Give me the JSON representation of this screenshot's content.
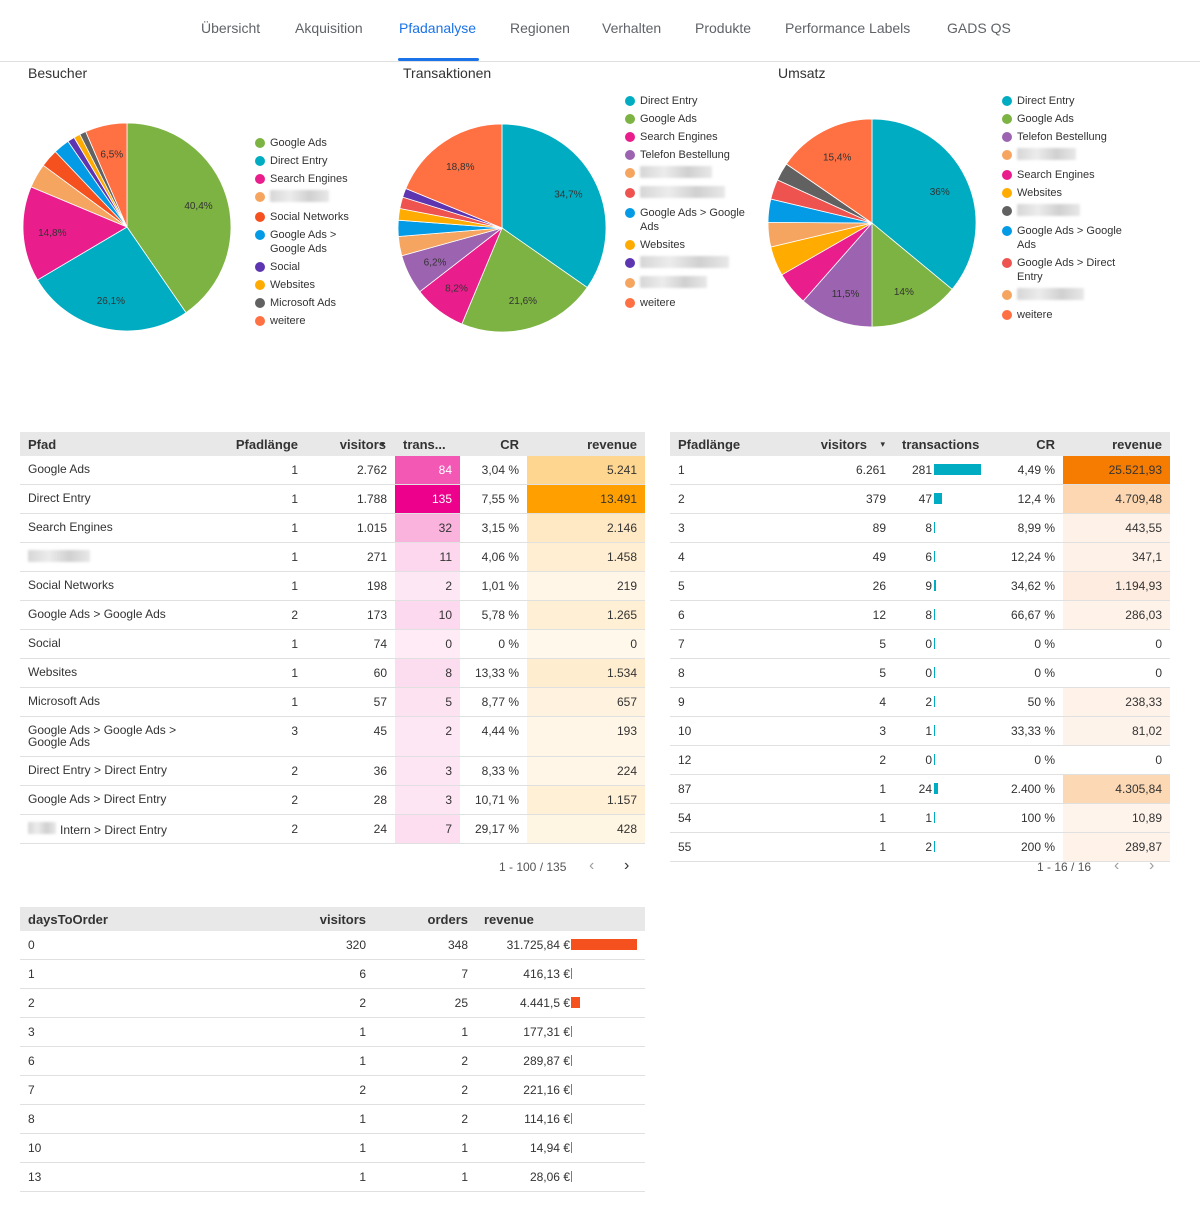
{
  "nav": {
    "tabs": [
      "Übersicht",
      "Akquisition",
      "Pfadanalyse",
      "Regionen",
      "Verhalten",
      "Produkte",
      "Performance Labels",
      "GADS QS"
    ],
    "active": "Pfadanalyse"
  },
  "colors": {
    "accent": "#1a73e8",
    "google_ads": "#7cb342",
    "direct_entry": "#00acc1",
    "search_engines": "#e91e8c",
    "social_networks": "#f4511e",
    "google_ads_google_ads": "#039be5",
    "social": "#5e35b1",
    "websites": "#ffab00",
    "microsoft_ads": "#616161",
    "weitere": "#ff7043",
    "telefon": "#9c64b0",
    "heat_pink": "#ec008c",
    "heat_orange": "#ffa000",
    "bar_teal": "#00acc1",
    "bar_orange": "#f4511e"
  },
  "charts": {
    "besucher": {
      "title": "Besucher",
      "slices": [
        {
          "label": "Google Ads",
          "pct": 40.4,
          "label_text": "40,4%",
          "color": "#7cb342"
        },
        {
          "label": "Direct Entry",
          "pct": 26.1,
          "label_text": "26,1%",
          "color": "#00acc1"
        },
        {
          "label": "Search Engines",
          "pct": 14.8,
          "label_text": "14,8%",
          "color": "#e91e8c"
        },
        {
          "label": "",
          "pct": 3.8,
          "label_text": "",
          "color": "#f6a561"
        },
        {
          "label": "Social Networks",
          "pct": 2.8,
          "label_text": "",
          "color": "#f4511e"
        },
        {
          "label": "Google Ads > Google Ads",
          "pct": 2.5,
          "label_text": "",
          "color": "#039be5"
        },
        {
          "label": "Social",
          "pct": 1.1,
          "label_text": "",
          "color": "#5e35b1"
        },
        {
          "label": "Websites",
          "pct": 1.0,
          "label_text": "",
          "color": "#ffab00"
        },
        {
          "label": "Microsoft Ads",
          "pct": 1.0,
          "label_text": "",
          "color": "#616161"
        },
        {
          "label": "weitere",
          "pct": 6.5,
          "label_text": "6,5%",
          "color": "#ff7043"
        }
      ],
      "legend": [
        "Google Ads",
        "Direct Entry",
        "Search Engines",
        "",
        "Social Networks",
        "Google Ads > Google Ads",
        "Social",
        "Websites",
        "Microsoft Ads",
        "weitere"
      ]
    },
    "transaktionen": {
      "title": "Transaktionen",
      "slices": [
        {
          "label": "Direct Entry",
          "pct": 34.7,
          "label_text": "34,7%",
          "color": "#00acc1"
        },
        {
          "label": "Google Ads",
          "pct": 21.6,
          "label_text": "21,6%",
          "color": "#7cb342"
        },
        {
          "label": "Search Engines",
          "pct": 8.2,
          "label_text": "8,2%",
          "color": "#e91e8c"
        },
        {
          "label": "Telefon Bestellung",
          "pct": 6.2,
          "label_text": "6,2%",
          "color": "#9c64b0"
        },
        {
          "label": "",
          "pct": 3.0,
          "label_text": "",
          "color": "#f6a561"
        },
        {
          "label": "Google Ads > Google Ads",
          "pct": 2.5,
          "label_text": "",
          "color": "#039be5"
        },
        {
          "label": "Websites",
          "pct": 1.8,
          "label_text": "",
          "color": "#ffab00"
        },
        {
          "label": "",
          "pct": 1.8,
          "label_text": "",
          "color": "#ef5350"
        },
        {
          "label": "",
          "pct": 1.4,
          "label_text": "",
          "color": "#5e35b1"
        },
        {
          "label": "weitere",
          "pct": 18.8,
          "label_text": "18,8%",
          "color": "#ff7043"
        }
      ],
      "legend": [
        "Direct Entry",
        "Google Ads",
        "Search Engines",
        "Telefon Bestellung",
        "",
        "",
        "Google Ads > Google Ads",
        "Websites",
        "",
        "",
        "weitere"
      ]
    },
    "umsatz": {
      "title": "Umsatz",
      "slices": [
        {
          "label": "Direct Entry",
          "pct": 36.0,
          "label_text": "36%",
          "color": "#00acc1"
        },
        {
          "label": "Google Ads",
          "pct": 14.0,
          "label_text": "14%",
          "color": "#7cb342"
        },
        {
          "label": "Telefon Bestellung",
          "pct": 11.5,
          "label_text": "11,5%",
          "color": "#9c64b0"
        },
        {
          "label": "Search Engines",
          "pct": 5.2,
          "label_text": "",
          "color": "#e91e8c"
        },
        {
          "label": "Websites",
          "pct": 4.6,
          "label_text": "",
          "color": "#ffab00"
        },
        {
          "label": "",
          "pct": 3.8,
          "label_text": "",
          "color": "#f6a561"
        },
        {
          "label": "Google Ads > Google Ads",
          "pct": 3.6,
          "label_text": "",
          "color": "#039be5"
        },
        {
          "label": "Google Ads > Direct Entry",
          "pct": 3.1,
          "label_text": "",
          "color": "#ef5350"
        },
        {
          "label": "",
          "pct": 2.8,
          "label_text": "",
          "color": "#616161"
        },
        {
          "label": "weitere",
          "pct": 15.4,
          "label_text": "15,4%",
          "color": "#ff7043"
        }
      ],
      "legend": [
        "Direct Entry",
        "Google Ads",
        "Telefon Bestellung",
        "",
        "Search Engines",
        "Websites",
        "",
        "Google Ads > Google Ads",
        "Google Ads > Direct Entry",
        "",
        "weitere"
      ]
    }
  },
  "path_table": {
    "headers": {
      "pfad": "Pfad",
      "pfadlaenge": "Pfadlänge",
      "visitors": "visitors",
      "sort_icon": "▾",
      "trans": "trans...",
      "cr": "CR",
      "revenue": "revenue"
    },
    "rows": [
      {
        "pfad": "Google Ads",
        "len": "1",
        "visitors": "2.762",
        "trans": "84",
        "cr": "3,04 %",
        "revenue": "5.241",
        "t": 84,
        "r": 5241
      },
      {
        "pfad": "Direct Entry",
        "len": "1",
        "visitors": "1.788",
        "trans": "135",
        "cr": "7,55 %",
        "revenue": "13.491",
        "t": 135,
        "r": 13491
      },
      {
        "pfad": "Search Engines",
        "len": "1",
        "visitors": "1.015",
        "trans": "32",
        "cr": "3,15 %",
        "revenue": "2.146",
        "t": 32,
        "r": 2146
      },
      {
        "pfad": "",
        "len": "1",
        "visitors": "271",
        "trans": "11",
        "cr": "4,06 %",
        "revenue": "1.458",
        "t": 11,
        "r": 1458
      },
      {
        "pfad": "Social Networks",
        "len": "1",
        "visitors": "198",
        "trans": "2",
        "cr": "1,01 %",
        "revenue": "219",
        "t": 2,
        "r": 219
      },
      {
        "pfad": "Google Ads > Google Ads",
        "len": "2",
        "visitors": "173",
        "trans": "10",
        "cr": "5,78 %",
        "revenue": "1.265",
        "t": 10,
        "r": 1265
      },
      {
        "pfad": "Social",
        "len": "1",
        "visitors": "74",
        "trans": "0",
        "cr": "0 %",
        "revenue": "0",
        "t": 0,
        "r": 0
      },
      {
        "pfad": "Websites",
        "len": "1",
        "visitors": "60",
        "trans": "8",
        "cr": "13,33 %",
        "revenue": "1.534",
        "t": 8,
        "r": 1534
      },
      {
        "pfad": "Microsoft Ads",
        "len": "1",
        "visitors": "57",
        "trans": "5",
        "cr": "8,77 %",
        "revenue": "657",
        "t": 5,
        "r": 657
      },
      {
        "pfad": "Google Ads > Google Ads > Google Ads",
        "len": "3",
        "visitors": "45",
        "trans": "2",
        "cr": "4,44 %",
        "revenue": "193",
        "t": 2,
        "r": 193
      },
      {
        "pfad": "Direct Entry > Direct Entry",
        "len": "2",
        "visitors": "36",
        "trans": "3",
        "cr": "8,33 %",
        "revenue": "224",
        "t": 3,
        "r": 224
      },
      {
        "pfad": "Google Ads > Direct Entry",
        "len": "2",
        "visitors": "28",
        "trans": "3",
        "cr": "10,71 %",
        "revenue": "1.157",
        "t": 3,
        "r": 1157
      },
      {
        "pfad": "Intern > Direct Entry",
        "len": "2",
        "visitors": "24",
        "trans": "7",
        "cr": "29,17 %",
        "revenue": "428",
        "t": 7,
        "r": 428
      }
    ],
    "pager": "1 - 100 / 135",
    "prev": "‹",
    "next": "›"
  },
  "length_table": {
    "headers": {
      "pfadlaenge": "Pfadlänge",
      "visitors": "visitors",
      "sort_icon": "▾",
      "transactions": "transactions",
      "cr": "CR",
      "revenue": "revenue"
    },
    "rows": [
      {
        "len": "1",
        "visitors": "6.261",
        "trans": "281",
        "cr": "4,49 %",
        "revenue": "25.521,93",
        "t": 281,
        "r": 25521.93
      },
      {
        "len": "2",
        "visitors": "379",
        "trans": "47",
        "cr": "12,4 %",
        "revenue": "4.709,48",
        "t": 47,
        "r": 4709.48
      },
      {
        "len": "3",
        "visitors": "89",
        "trans": "8",
        "cr": "8,99 %",
        "revenue": "443,55",
        "t": 8,
        "r": 443.55
      },
      {
        "len": "4",
        "visitors": "49",
        "trans": "6",
        "cr": "12,24 %",
        "revenue": "347,1",
        "t": 6,
        "r": 347.1
      },
      {
        "len": "5",
        "visitors": "26",
        "trans": "9",
        "cr": "34,62 %",
        "revenue": "1.194,93",
        "t": 9,
        "r": 1194.93
      },
      {
        "len": "6",
        "visitors": "12",
        "trans": "8",
        "cr": "66,67 %",
        "revenue": "286,03",
        "t": 8,
        "r": 286.03
      },
      {
        "len": "7",
        "visitors": "5",
        "trans": "0",
        "cr": "0 %",
        "revenue": "0",
        "t": 0,
        "r": 0
      },
      {
        "len": "8",
        "visitors": "5",
        "trans": "0",
        "cr": "0 %",
        "revenue": "0",
        "t": 0,
        "r": 0
      },
      {
        "len": "9",
        "visitors": "4",
        "trans": "2",
        "cr": "50 %",
        "revenue": "238,33",
        "t": 2,
        "r": 238.33
      },
      {
        "len": "10",
        "visitors": "3",
        "trans": "1",
        "cr": "33,33 %",
        "revenue": "81,02",
        "t": 1,
        "r": 81.02
      },
      {
        "len": "12",
        "visitors": "2",
        "trans": "0",
        "cr": "0 %",
        "revenue": "0",
        "t": 0,
        "r": 0
      },
      {
        "len": "87",
        "visitors": "1",
        "trans": "24",
        "cr": "2.400 %",
        "revenue": "4.305,84",
        "t": 24,
        "r": 4305.84
      },
      {
        "len": "54",
        "visitors": "1",
        "trans": "1",
        "cr": "100 %",
        "revenue": "10,89",
        "t": 1,
        "r": 10.89
      },
      {
        "len": "55",
        "visitors": "1",
        "trans": "2",
        "cr": "200 %",
        "revenue": "289,87",
        "t": 2,
        "r": 289.87
      }
    ],
    "pager": "1 - 16 / 16",
    "prev": "‹",
    "next": "›"
  },
  "days_table": {
    "headers": {
      "days": "daysToOrder",
      "visitors": "visitors",
      "orders": "orders",
      "revenue": "revenue"
    },
    "rows": [
      {
        "days": "0",
        "visitors": "320",
        "orders": "348",
        "revenue": "31.725,84 €",
        "r": 31725.84
      },
      {
        "days": "1",
        "visitors": "6",
        "orders": "7",
        "revenue": "416,13 €",
        "r": 416.13
      },
      {
        "days": "2",
        "visitors": "2",
        "orders": "25",
        "revenue": "4.441,5 €",
        "r": 4441.5
      },
      {
        "days": "3",
        "visitors": "1",
        "orders": "1",
        "revenue": "177,31 €",
        "r": 177.31
      },
      {
        "days": "6",
        "visitors": "1",
        "orders": "2",
        "revenue": "289,87 €",
        "r": 289.87
      },
      {
        "days": "7",
        "visitors": "2",
        "orders": "2",
        "revenue": "221,16 €",
        "r": 221.16
      },
      {
        "days": "8",
        "visitors": "1",
        "orders": "2",
        "revenue": "114,16 €",
        "r": 114.16
      },
      {
        "days": "10",
        "visitors": "1",
        "orders": "1",
        "revenue": "14,94 €",
        "r": 14.94
      },
      {
        "days": "13",
        "visitors": "1",
        "orders": "1",
        "revenue": "28,06 €",
        "r": 28.06
      }
    ]
  }
}
